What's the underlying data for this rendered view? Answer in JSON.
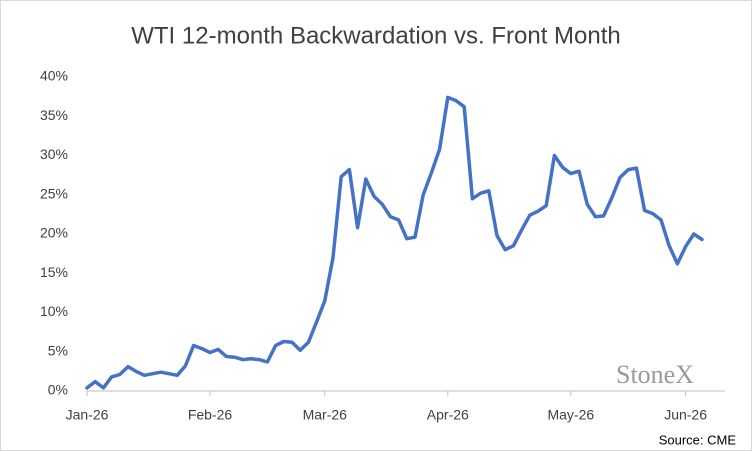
{
  "chart_data": {
    "type": "line",
    "title": "WTI 12-month Backwardation vs. Front Month",
    "source": "Source: CME",
    "logo": "StoneX",
    "color": "#4472c4",
    "categories": [
      "Jan-26",
      null,
      null,
      null,
      null,
      null,
      null,
      null,
      null,
      null,
      null,
      null,
      null,
      null,
      null,
      "Feb-26",
      null,
      null,
      null,
      null,
      null,
      null,
      null,
      null,
      null,
      null,
      null,
      null,
      null,
      "Mar-26",
      null,
      null,
      null,
      null,
      null,
      null,
      null,
      null,
      null,
      null,
      null,
      null,
      null,
      null,
      "Apr-26",
      null,
      null,
      null,
      null,
      null,
      null,
      null,
      null,
      null,
      null,
      null,
      null,
      null,
      null,
      "May-26",
      null,
      null,
      null,
      null,
      null,
      null,
      null,
      null,
      null,
      null,
      null,
      null,
      null,
      "Jun-26",
      null,
      null
    ],
    "values": [
      0.4,
      1.2,
      0.4,
      1.8,
      2.1,
      3.1,
      2.5,
      2.0,
      2.2,
      2.4,
      2.2,
      2.0,
      3.2,
      5.8,
      5.4,
      4.9,
      5.3,
      4.4,
      4.3,
      4.0,
      4.1,
      4.0,
      3.7,
      5.8,
      6.3,
      6.2,
      5.2,
      6.2,
      8.8,
      11.5,
      17,
      27.3,
      28.2,
      20.8,
      27.0,
      24.8,
      23.8,
      22.2,
      21.8,
      19.4,
      19.6,
      25,
      27.8,
      30.8,
      37.4,
      37.0,
      36.2,
      24.5,
      25.2,
      25.5,
      19.8,
      18,
      18.5,
      20.5,
      22.4,
      22.9,
      23.6,
      30,
      28.5,
      27.7,
      28,
      23.8,
      22.2,
      22.3,
      24.6,
      27.2,
      28.2,
      28.4,
      23.0,
      22.6,
      21.8,
      18.5,
      16.2,
      18.4,
      20.0,
      19.3
    ],
    "ylim": [
      0,
      40
    ],
    "yticks": [
      {
        "value": 0,
        "label": "0%"
      },
      {
        "value": 5,
        "label": "5%"
      },
      {
        "value": 10,
        "label": "10%"
      },
      {
        "value": 15,
        "label": "15%"
      },
      {
        "value": 20,
        "label": "20%"
      },
      {
        "value": 25,
        "label": "25%"
      },
      {
        "value": 30,
        "label": "30%"
      },
      {
        "value": 35,
        "label": "35%"
      },
      {
        "value": 40,
        "label": "40%"
      }
    ],
    "grid": false
  }
}
